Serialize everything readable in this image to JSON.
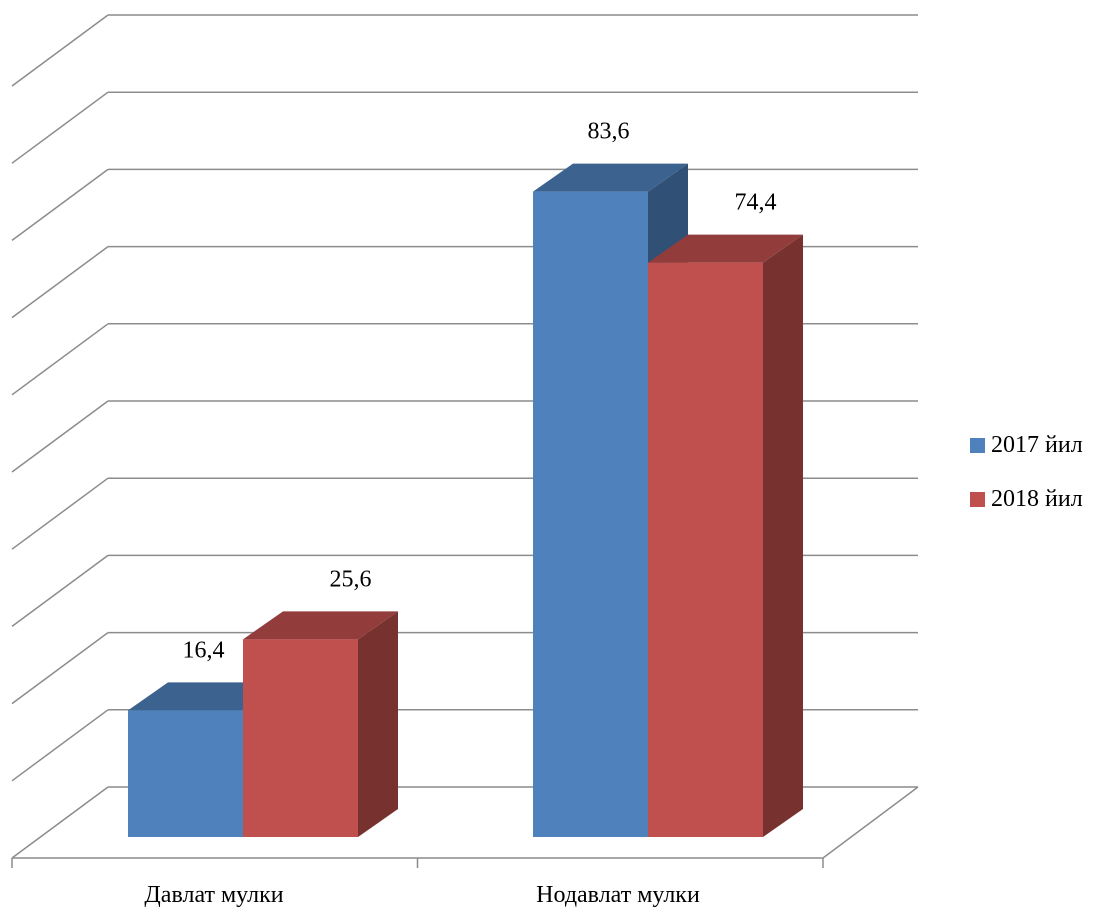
{
  "chart_data": {
    "type": "bar",
    "categories": [
      "Давлат мулки",
      "Нодавлат мулки"
    ],
    "series": [
      {
        "name": "2017 йил",
        "values": [
          16.4,
          83.6
        ],
        "color": "#4F81BD"
      },
      {
        "name": "2018 йил",
        "values": [
          25.6,
          74.4
        ],
        "color": "#C0504D"
      }
    ],
    "data_labels": [
      [
        "16,4",
        "83,6"
      ],
      [
        "25,6",
        "74,4"
      ]
    ],
    "ylim": [
      0,
      100
    ],
    "gridlines": 10,
    "grid": true,
    "legend_position": "right",
    "style": "3d-clustered-column"
  }
}
